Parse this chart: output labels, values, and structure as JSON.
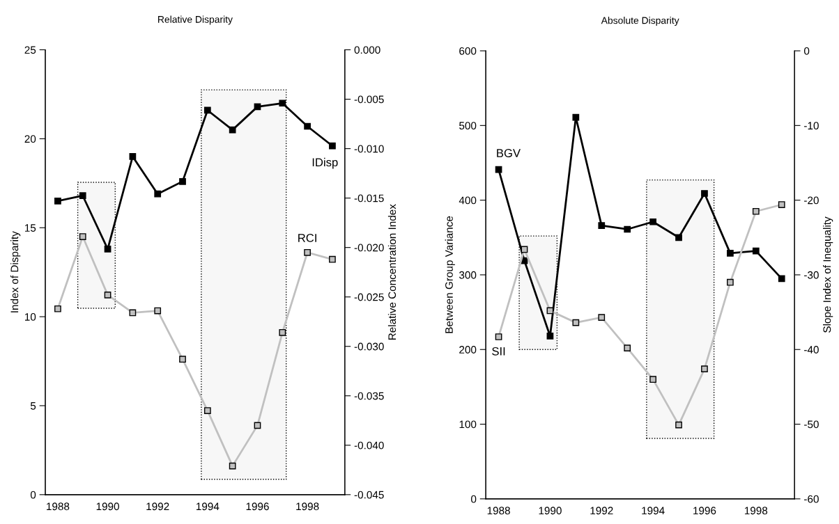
{
  "chart_data": [
    {
      "type": "line",
      "title": "Relative Disparity",
      "ylabel": "Index of Disparity",
      "y2label": "Relative Concentration Index",
      "x": [
        1988,
        1989,
        1990,
        1991,
        1992,
        1993,
        1994,
        1995,
        1996,
        1997,
        1998,
        1999
      ],
      "series": [
        {
          "name": "IDisp",
          "color": "#000000",
          "values": [
            16.5,
            16.8,
            13.8,
            19.0,
            16.9,
            17.6,
            21.6,
            20.5,
            21.8,
            22.0,
            20.7,
            19.6
          ]
        },
        {
          "name": "RCI",
          "color": "#c0c0c0",
          "axis": "y2",
          "values": [
            -0.0262,
            -0.0189,
            -0.0248,
            -0.0266,
            -0.0264,
            -0.0313,
            -0.0365,
            -0.0421,
            -0.038,
            -0.0286,
            -0.0205,
            -0.0212
          ]
        }
      ],
      "xlim": [
        1987.5,
        1999.5
      ],
      "xticks": [
        1988,
        1990,
        1992,
        1994,
        1996,
        1998
      ],
      "ylim": [
        0,
        25
      ],
      "yticks": [
        0,
        5,
        10,
        15,
        20,
        25
      ],
      "y2lim": [
        -0.045,
        0.0
      ],
      "y2ticks": [
        {
          "value": -0.045,
          "label": "-0.045"
        },
        {
          "value": -0.04,
          "label": "-0.040"
        },
        {
          "value": -0.035,
          "label": "-0.035"
        },
        {
          "value": -0.03,
          "label": "-0.030"
        },
        {
          "value": -0.025,
          "label": "-0.025"
        },
        {
          "value": -0.02,
          "label": "-0.020"
        },
        {
          "value": -0.015,
          "label": "-0.015"
        },
        {
          "value": -0.01,
          "label": "-0.010"
        },
        {
          "value": -0.005,
          "label": "-0.005"
        },
        {
          "value": 0.0,
          "label": "0.000"
        }
      ],
      "bands": [
        {
          "axis": "x",
          "from": 1988.8,
          "to": 1990.3,
          "color": "#000000"
        },
        {
          "axis": "x",
          "from": 1993.75,
          "to": 1997.15,
          "color": "#000000"
        }
      ],
      "marker": "square",
      "line_style": "solid",
      "grid": false,
      "legend": false
    },
    {
      "type": "line",
      "title": "Absolute Disparity",
      "ylabel": "Between Group Variance",
      "y2label": "Slope Index of Inequality",
      "x": [
        1988,
        1989,
        1990,
        1991,
        1992,
        1993,
        1994,
        1995,
        1996,
        1997,
        1998,
        1999
      ],
      "series": [
        {
          "name": "BGV",
          "color": "#000000",
          "values": [
            441,
            319,
            218,
            511,
            366,
            361,
            371,
            350,
            409,
            329,
            332,
            295
          ]
        },
        {
          "name": "SII",
          "color": "#c0c0c0",
          "axis": "y2",
          "values": [
            -38.3,
            -26.6,
            -34.8,
            -36.4,
            -35.7,
            -39.8,
            -44.0,
            -50.1,
            -42.6,
            -31.0,
            -21.5,
            -20.6
          ]
        }
      ],
      "xlim": [
        1987.5,
        1999.5
      ],
      "xticks": [
        1988,
        1990,
        1992,
        1994,
        1996,
        1998
      ],
      "ylim": [
        0,
        600
      ],
      "yticks": [
        0,
        100,
        200,
        300,
        400,
        500,
        600
      ],
      "y2lim": [
        -60,
        0
      ],
      "y2ticks": [
        -60,
        -50,
        -40,
        -30,
        -20,
        -10,
        0
      ],
      "bands": [
        {
          "axis": "x",
          "from": 1988.8,
          "to": 1990.27,
          "color": "#000000"
        },
        {
          "axis": "x",
          "from": 1993.75,
          "to": 1996.37,
          "color": "#000000"
        }
      ],
      "marker": "square",
      "line_style": "solid",
      "grid": false,
      "legend": false
    }
  ]
}
